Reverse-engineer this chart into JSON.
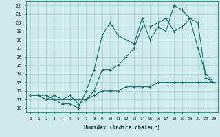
{
  "xlabel": "Humidex (Indice chaleur)",
  "background_color": "#ceeaea",
  "grid_color": "#b0d8d8",
  "line_color": "#1a6e6e",
  "xlim": [
    -0.5,
    23.5
  ],
  "ylim": [
    9.5,
    22.5
  ],
  "xticks": [
    0,
    1,
    2,
    3,
    4,
    5,
    6,
    7,
    8,
    9,
    10,
    11,
    12,
    13,
    14,
    15,
    16,
    17,
    18,
    19,
    20,
    21,
    22,
    23
  ],
  "yticks": [
    10,
    11,
    12,
    13,
    14,
    15,
    16,
    17,
    18,
    19,
    20,
    21,
    22
  ],
  "line1_x": [
    0,
    1,
    2,
    3,
    4,
    5,
    6,
    7,
    8,
    9,
    10,
    11,
    12,
    13,
    14,
    15,
    16,
    17,
    18,
    19,
    20,
    21,
    22,
    23
  ],
  "line1_y": [
    11.5,
    11.5,
    11.0,
    11.0,
    10.5,
    10.5,
    10.0,
    12.0,
    14.5,
    18.5,
    20.0,
    18.5,
    18.0,
    17.5,
    20.5,
    18.0,
    19.5,
    19.0,
    22.0,
    21.5,
    20.5,
    17.0,
    14.0,
    13.0
  ],
  "line2_x": [
    0,
    1,
    2,
    3,
    4,
    5,
    6,
    7,
    8,
    9,
    10,
    11,
    12,
    13,
    14,
    15,
    16,
    17,
    18,
    19,
    20,
    21,
    22,
    23
  ],
  "line2_y": [
    11.5,
    11.5,
    11.0,
    11.5,
    11.0,
    11.5,
    10.5,
    11.0,
    12.0,
    14.5,
    14.5,
    15.0,
    16.0,
    17.0,
    19.5,
    19.5,
    20.0,
    20.5,
    19.0,
    19.5,
    20.5,
    20.0,
    13.5,
    13.0
  ],
  "line3_x": [
    0,
    1,
    2,
    3,
    4,
    5,
    6,
    7,
    8,
    9,
    10,
    11,
    12,
    13,
    14,
    15,
    16,
    17,
    18,
    19,
    20,
    21,
    22,
    23
  ],
  "line3_y": [
    11.5,
    11.5,
    11.5,
    11.0,
    11.0,
    11.0,
    11.0,
    11.0,
    11.5,
    12.0,
    12.0,
    12.0,
    12.5,
    12.5,
    12.5,
    12.5,
    13.0,
    13.0,
    13.0,
    13.0,
    13.0,
    13.0,
    13.0,
    13.0
  ]
}
